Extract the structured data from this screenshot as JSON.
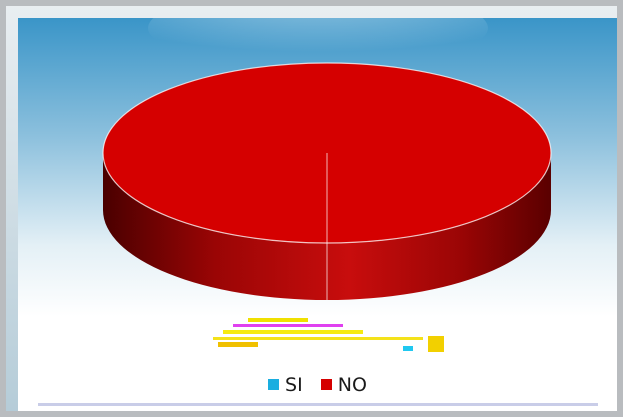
{
  "chart_data": {
    "type": "pie",
    "title": "",
    "categories": [
      "SI",
      "NO"
    ],
    "values": [
      0,
      100
    ],
    "colors": [
      "#1aaee0",
      "#d50000"
    ],
    "legend_position": "bottom"
  }
}
